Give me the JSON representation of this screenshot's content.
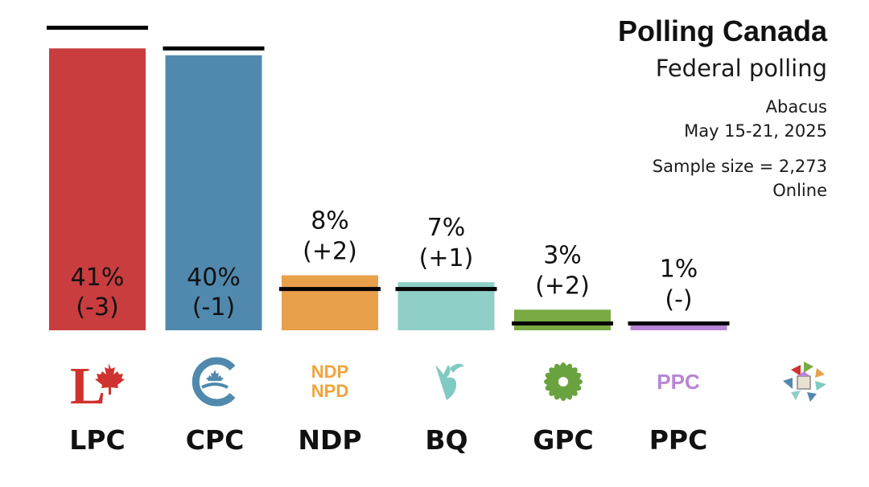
{
  "header": {
    "title": "Polling Canada",
    "subtitle": "Federal polling",
    "pollster": "Abacus",
    "dates": "May 15-21, 2025",
    "sample": "Sample size = 2,273",
    "mode": "Online"
  },
  "chart_data": {
    "type": "bar",
    "title": "Polling Canada",
    "subtitle": "Federal polling",
    "categories": [
      "LPC",
      "CPC",
      "NDP",
      "BQ",
      "GPC",
      "PPC"
    ],
    "values": [
      41,
      40,
      8,
      7,
      3,
      1
    ],
    "changes": [
      "(-3)",
      "(-1)",
      "(+2)",
      "(+1)",
      "(+2)",
      "(-)"
    ],
    "value_labels": [
      "41%",
      "40%",
      "8%",
      "7%",
      "3%",
      "1%"
    ],
    "previous": [
      44,
      41,
      6,
      6,
      1,
      1
    ],
    "colors": [
      "#c93d3f",
      "#5089ad",
      "#e8a04a",
      "#8fcfc7",
      "#7aaa43",
      "#b685d6"
    ],
    "ylim": [
      0,
      45
    ],
    "xlabel": "",
    "ylabel": ""
  },
  "parties": {
    "lpc": "LPC",
    "cpc": "CPC",
    "ndp": "NDP",
    "bq": "BQ",
    "gpc": "GPC",
    "ppc": "PPC"
  },
  "logo_text": {
    "ndp_top": "NDP",
    "ndp_bottom": "NPD",
    "ppc": "PPC"
  },
  "icons": {
    "lpc": "liberal-maple-leaf-icon",
    "cpc": "conservative-c-maple-icon",
    "ndp": "ndp-npd-wordmark-icon",
    "bq": "bloc-quebecois-icon",
    "gpc": "green-party-flower-icon",
    "ppc": "ppc-wordmark-icon",
    "other": "other-parties-icon"
  }
}
